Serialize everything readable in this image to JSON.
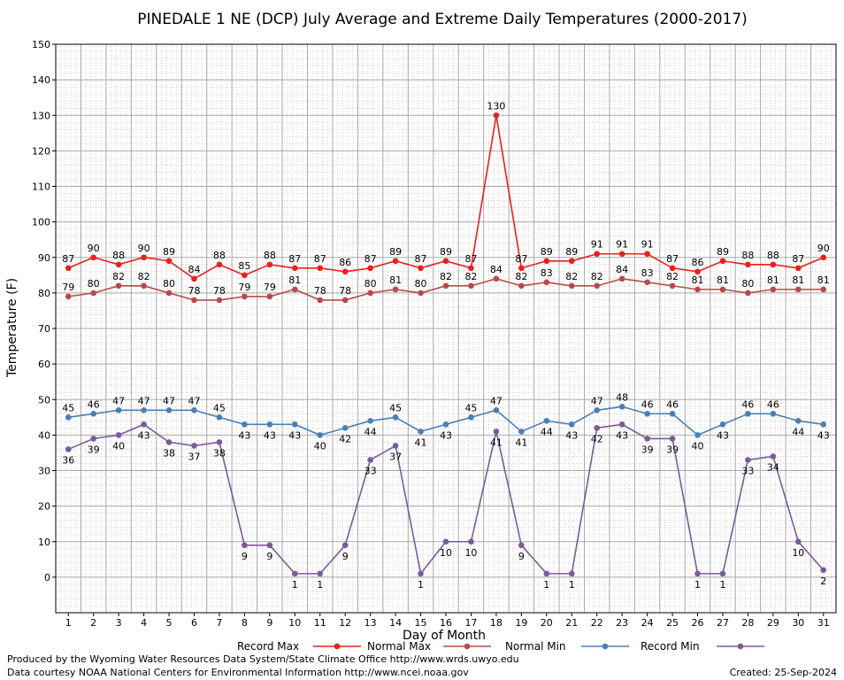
{
  "chart_data": {
    "type": "line",
    "title": "PINEDALE 1 NE (DCP) July Average and Extreme Daily Temperatures (2000-2017)",
    "xlabel": "Day of Month",
    "ylabel": "Temperature (F)",
    "x": [
      1,
      2,
      3,
      4,
      5,
      6,
      7,
      8,
      9,
      10,
      11,
      12,
      13,
      14,
      15,
      16,
      17,
      18,
      19,
      20,
      21,
      22,
      23,
      24,
      25,
      26,
      27,
      28,
      29,
      30,
      31
    ],
    "xlim": [
      0.5,
      31.5
    ],
    "ylim": [
      -10,
      150
    ],
    "yticks": [
      0,
      10,
      20,
      30,
      40,
      50,
      60,
      70,
      80,
      90,
      100,
      110,
      120,
      130,
      140,
      150
    ],
    "grid": true,
    "legend": "bottom",
    "series": [
      {
        "name": "Record Max",
        "color": "#e8201e",
        "label_pos": "above",
        "values": [
          87,
          90,
          88,
          90,
          89,
          84,
          88,
          85,
          88,
          87,
          87,
          86,
          87,
          89,
          87,
          89,
          87,
          130,
          87,
          89,
          89,
          91,
          91,
          91,
          87,
          86,
          89,
          88,
          88,
          87,
          90
        ]
      },
      {
        "name": "Normal Max",
        "color": "#b84a4a",
        "label_pos": "above",
        "values": [
          79,
          80,
          82,
          82,
          80,
          78,
          78,
          79,
          79,
          81,
          78,
          78,
          80,
          81,
          80,
          82,
          82,
          84,
          82,
          83,
          82,
          82,
          84,
          83,
          82,
          81,
          81,
          80,
          81,
          81,
          81
        ]
      },
      {
        "name": "Normal Min",
        "color": "#4a7fb5",
        "label_pos": "mixed",
        "values": [
          45,
          46,
          47,
          47,
          47,
          47,
          45,
          43,
          43,
          43,
          40,
          42,
          44,
          45,
          41,
          43,
          45,
          47,
          41,
          44,
          43,
          47,
          48,
          46,
          46,
          40,
          43,
          46,
          46,
          44,
          43
        ]
      },
      {
        "name": "Record Min",
        "color": "#7b5a9a",
        "label_pos": "below",
        "values": [
          36,
          39,
          40,
          43,
          38,
          37,
          38,
          9,
          9,
          1,
          1,
          9,
          33,
          37,
          1,
          10,
          10,
          41,
          9,
          1,
          1,
          42,
          43,
          39,
          39,
          1,
          1,
          33,
          34,
          10,
          2
        ]
      }
    ]
  },
  "footer": {
    "line1": "Produced by the Wyoming Water Resources Data System/State Climate Office http://www.wrds.uwyo.edu",
    "line2": "Data courtesy NOAA National Centers for Environmental Information http://www.ncei.noaa.gov",
    "created": "Created:  25-Sep-2024"
  }
}
